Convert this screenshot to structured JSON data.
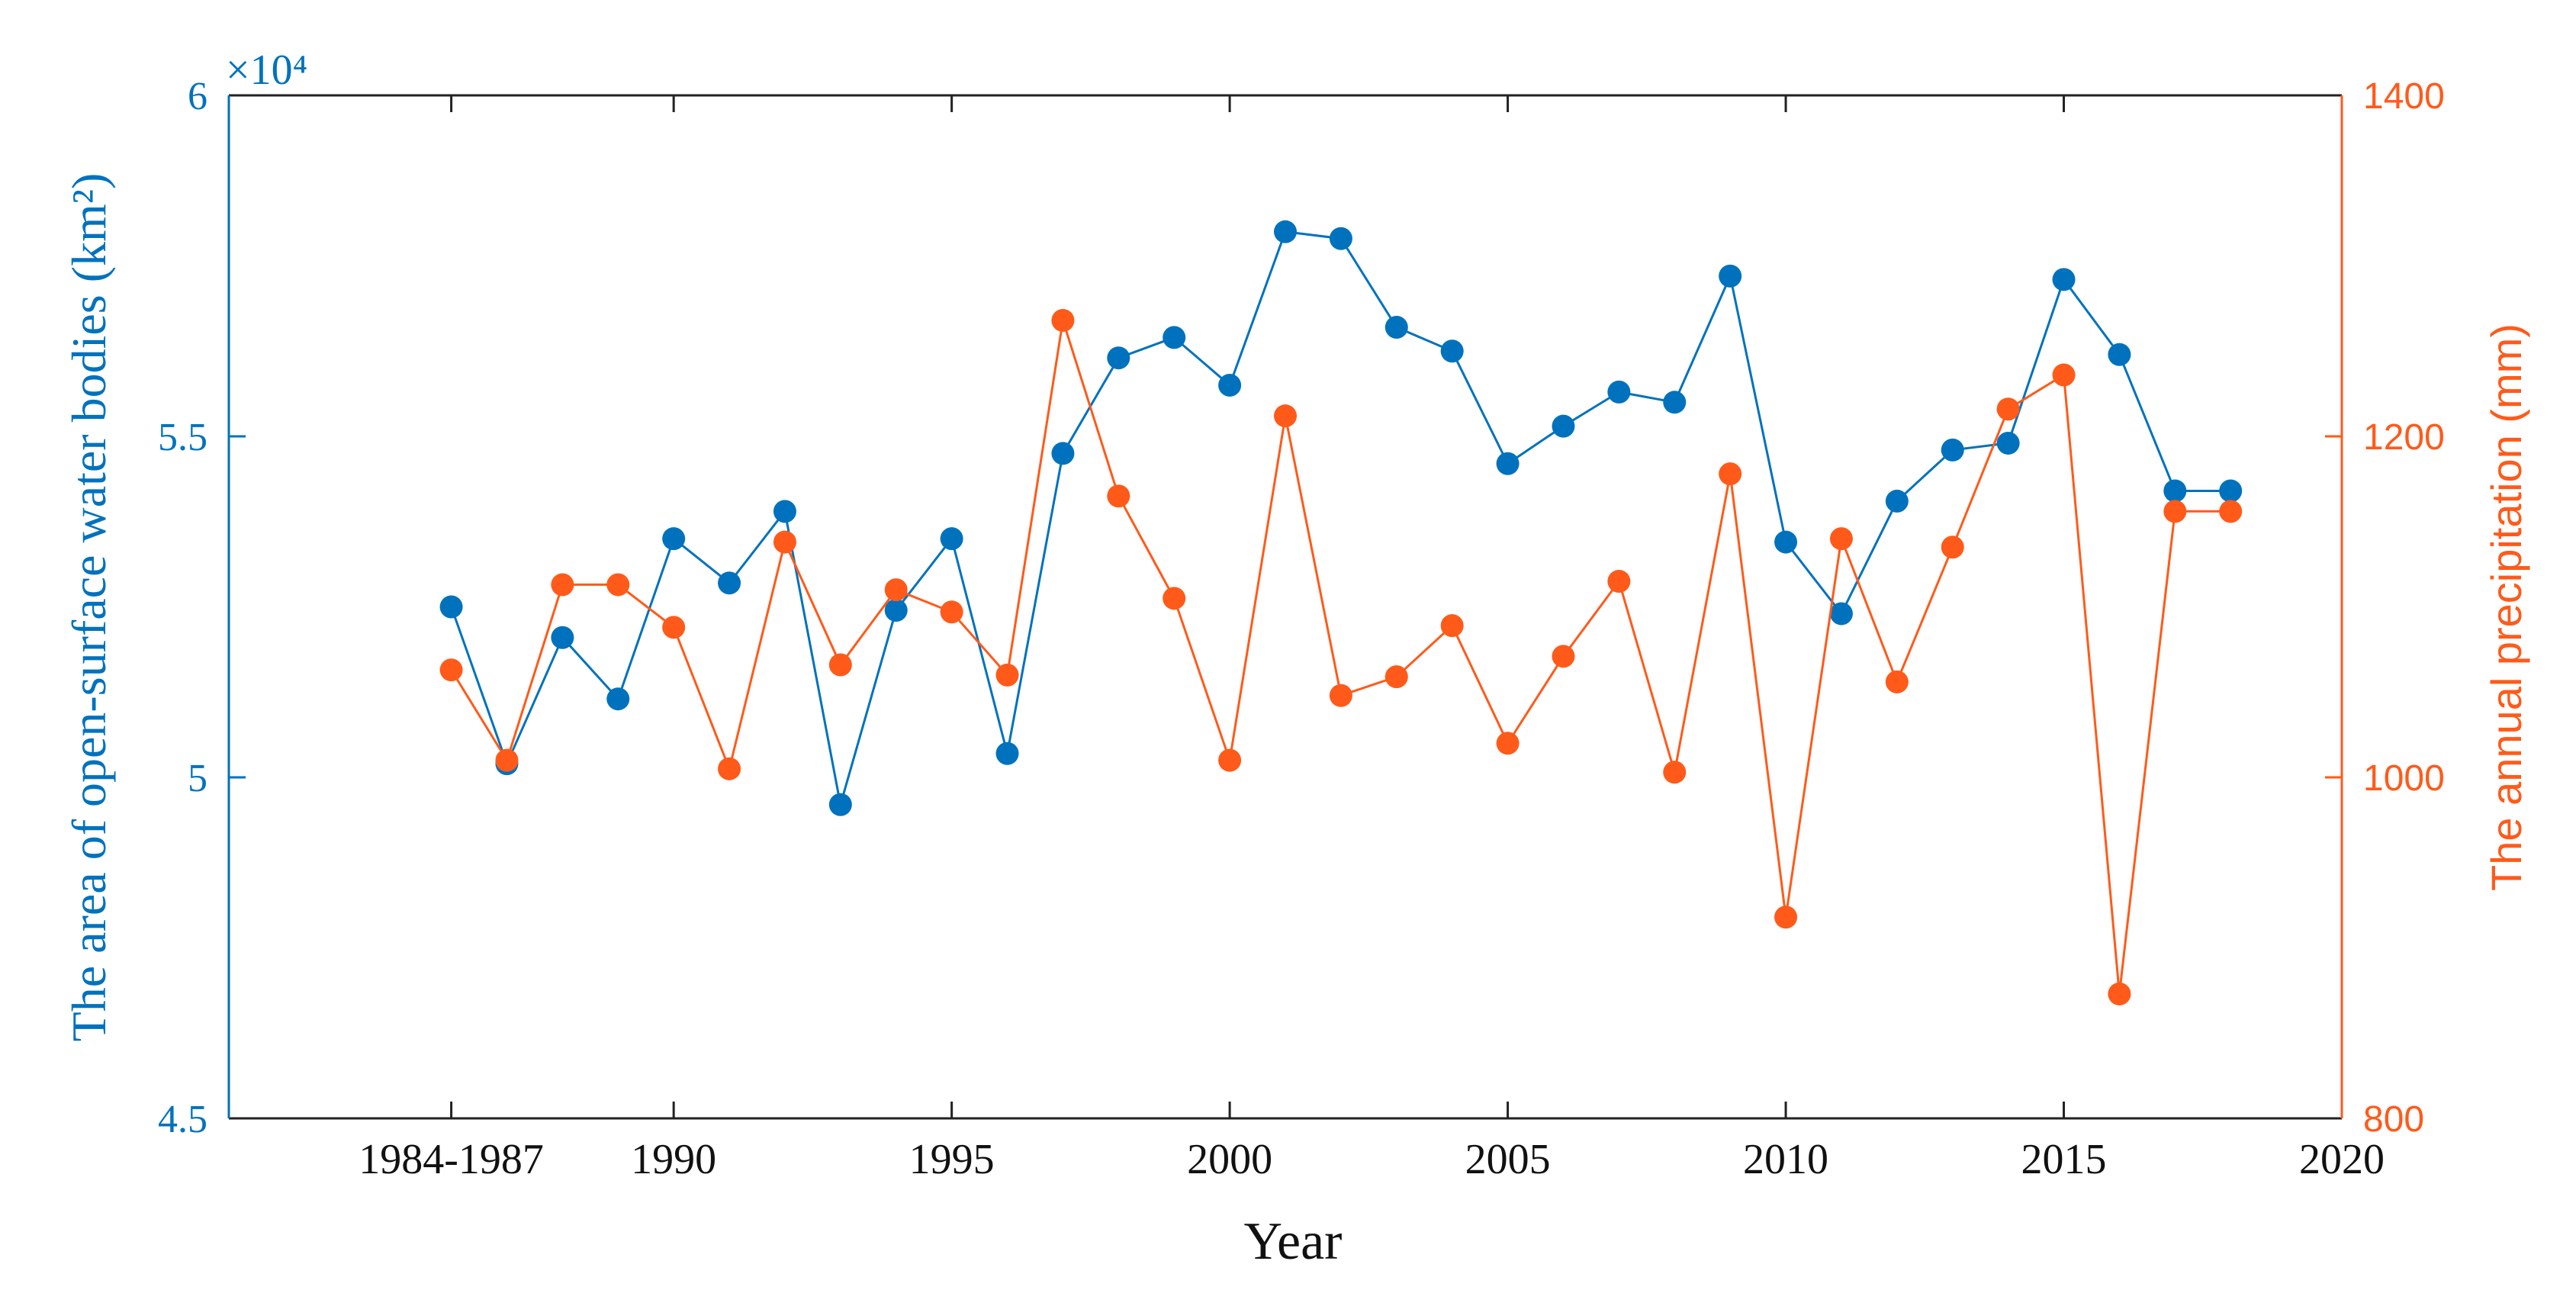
{
  "chart_data": {
    "type": "line",
    "xlabel": "Year",
    "ylabel_left": "The area of open-surface water bodies (km²)",
    "ylabel_right": "The annual precipitation (mm)",
    "left_axis_exponent": "×10⁴",
    "xlim": [
      1982,
      2020
    ],
    "ylim_left": [
      4.5,
      6.0
    ],
    "ylim_right": [
      800,
      1400
    ],
    "x_ticks": [
      {
        "value": 1986,
        "label": "1984-1987"
      },
      {
        "value": 1990,
        "label": "1990"
      },
      {
        "value": 1995,
        "label": "1995"
      },
      {
        "value": 2000,
        "label": "2000"
      },
      {
        "value": 2005,
        "label": "2005"
      },
      {
        "value": 2010,
        "label": "2010"
      },
      {
        "value": 2015,
        "label": "2015"
      },
      {
        "value": 2020,
        "label": "2020"
      }
    ],
    "y_ticks_left": [
      {
        "value": 4.5,
        "label": "4.5"
      },
      {
        "value": 5.0,
        "label": "5"
      },
      {
        "value": 5.5,
        "label": "5.5"
      },
      {
        "value": 6.0,
        "label": "6"
      }
    ],
    "y_ticks_right": [
      {
        "value": 800,
        "label": "800"
      },
      {
        "value": 1000,
        "label": "1000"
      },
      {
        "value": 1200,
        "label": "1200"
      },
      {
        "value": 1400,
        "label": "1400"
      }
    ],
    "series": [
      {
        "name": "Open-surface water area",
        "axis": "left",
        "color": "#0072BD",
        "x": [
          1986,
          1987,
          1988,
          1989,
          1990,
          1991,
          1992,
          1993,
          1994,
          1995,
          1996,
          1997,
          1998,
          1999,
          2000,
          2001,
          2002,
          2003,
          2004,
          2005,
          2006,
          2007,
          2008,
          2009,
          2010,
          2011,
          2012,
          2013,
          2014,
          2015,
          2016,
          2017,
          2018
        ],
        "values": [
          5.25,
          5.02,
          5.205,
          5.115,
          5.35,
          5.285,
          5.39,
          4.96,
          5.245,
          5.35,
          5.035,
          5.475,
          5.615,
          5.645,
          5.575,
          5.8,
          5.79,
          5.66,
          5.625,
          5.46,
          5.515,
          5.565,
          5.55,
          5.735,
          5.345,
          5.24,
          5.405,
          5.48,
          5.49,
          5.73,
          5.62,
          5.42,
          5.42
        ]
      },
      {
        "name": "Annual precipitation",
        "axis": "right",
        "color": "#FF5A1A",
        "x": [
          1986,
          1987,
          1988,
          1989,
          1990,
          1991,
          1992,
          1993,
          1994,
          1995,
          1996,
          1997,
          1998,
          1999,
          2000,
          2001,
          2002,
          2003,
          2004,
          2005,
          2006,
          2007,
          2008,
          2009,
          2010,
          2011,
          2012,
          2013,
          2014,
          2015,
          2016,
          2017,
          2018
        ],
        "values": [
          1063,
          1010,
          1113,
          1113,
          1088,
          1005,
          1138,
          1066,
          1110,
          1097,
          1060,
          1268,
          1165,
          1105,
          1010,
          1212,
          1048,
          1059,
          1089,
          1020,
          1071,
          1115,
          1003,
          1178,
          918,
          1140,
          1056,
          1135,
          1216,
          1236,
          873,
          1156,
          1156
        ]
      }
    ]
  }
}
